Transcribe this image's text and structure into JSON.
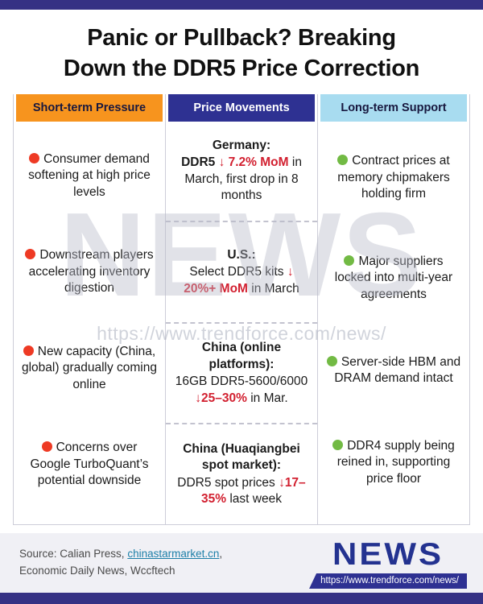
{
  "colors": {
    "bar": "#353184",
    "orange": "#F7941E",
    "navy": "#2E3192",
    "lightblue": "#A8DCF0",
    "red": "#EE3A24",
    "green": "#72BA44",
    "stat": "#D22030",
    "link": "#1D7FA8"
  },
  "title": {
    "line1": "Panic or Pullback? Breaking",
    "line2": "Down the DDR5 Price Correction"
  },
  "pressure": {
    "header": "Short-term Pressure",
    "items": [
      "Consumer demand softening at high price levels",
      "Downstream players accelerating inventory digestion",
      "New capacity (China, global) gradually coming online",
      "Concerns over Google TurboQuant’s potential downside"
    ]
  },
  "price": {
    "header": "Price Movements",
    "items": [
      {
        "title": "Germany:",
        "lead": "DDR5 ",
        "stat": "↓ 7.2% MoM",
        "tail": " in March, first drop in 8 months"
      },
      {
        "title": "U.S.:",
        "lead": "Select DDR5 kits ",
        "stat": "↓ 20%+ MoM",
        "tail": " in March"
      },
      {
        "title": "China (online platforms):",
        "lead": "16GB DDR5-5600/6000 ",
        "stat": "↓25–30%",
        "tail": " in Mar."
      },
      {
        "title": "China (Huaqiangbei spot market):",
        "lead": "DDR5 spot prices ",
        "stat": "↓17–35%",
        "tail": " last week"
      }
    ]
  },
  "support": {
    "header": "Long-term Support",
    "items": [
      "Contract prices at memory chipmakers holding firm",
      "Major suppliers locked into multi-year agreements",
      "Server-side HBM and DRAM demand intact",
      "DDR4 supply being reined in, supporting price floor"
    ]
  },
  "watermark": {
    "brand": "NEWS",
    "url": "https://www.trendforce.com/news/"
  },
  "footer": {
    "source_prefix": "Source: Calian Press, ",
    "source_link": "chinastarmarket.cn",
    "source_suffix": ",",
    "source_line2": "Economic Daily News, Wccftech",
    "logo": "NEWS",
    "url": "https://www.trendforce.com/news/"
  }
}
